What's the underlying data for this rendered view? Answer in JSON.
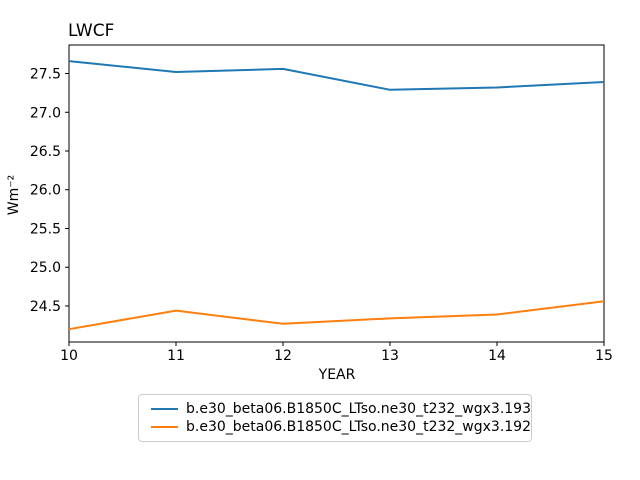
{
  "chart_data": {
    "type": "line",
    "title": "LWCF",
    "xlabel": "YEAR",
    "ylabel": "Wm⁻²",
    "x": [
      10,
      11,
      12,
      13,
      14,
      15
    ],
    "series": [
      {
        "name": "b.e30_beta06.B1850C_LTso.ne30_t232_wgx3.193",
        "color": "#1f77b4",
        "values": [
          27.66,
          27.52,
          27.56,
          27.29,
          27.32,
          27.39
        ]
      },
      {
        "name": "b.e30_beta06.B1850C_LTso.ne30_t232_wgx3.192",
        "color": "#ff7f0e",
        "values": [
          24.2,
          24.44,
          24.27,
          24.34,
          24.39,
          24.56
        ]
      }
    ],
    "xlim": [
      10,
      15
    ],
    "ylim": [
      24.035,
      27.868
    ],
    "xticks": [
      10,
      11,
      12,
      13,
      14,
      15
    ],
    "xtick_labels": [
      "10",
      "11",
      "12",
      "13",
      "14",
      "15"
    ],
    "yticks": [
      24.5,
      25.0,
      25.5,
      26.0,
      26.5,
      27.0,
      27.5
    ],
    "ytick_labels": [
      "24.5",
      "25.0",
      "25.5",
      "26.0",
      "26.5",
      "27.0",
      "27.5"
    ],
    "grid": false,
    "legend_position": "below",
    "axis_color": "#000000",
    "background_color": "#ffffff",
    "legend_border_color": "#cccccc"
  }
}
